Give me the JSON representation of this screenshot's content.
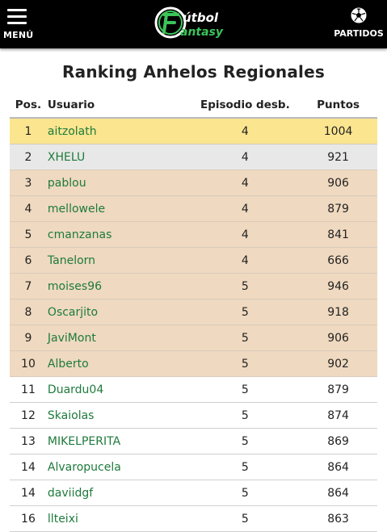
{
  "header": {
    "menu_label": "MENÚ",
    "logo_text_top": "útbol",
    "logo_text_bottom": "antasy",
    "partidos_label": "PARTIDOS"
  },
  "page": {
    "title": "Ranking Anhelos Regionales"
  },
  "colors": {
    "topbar": "#000000",
    "link_green": "#1e7a3c",
    "first_row": "#fbe58f",
    "second_row": "#e8e8e8",
    "highlight_rows": "#efd9c0"
  },
  "table": {
    "headers": {
      "pos": "Pos.",
      "user": "Usuario",
      "episode": "Episodio desb.",
      "points": "Puntos"
    },
    "rows": [
      {
        "pos": "1",
        "user": "aitzolath",
        "episode": "4",
        "points": "1004",
        "style": "gold"
      },
      {
        "pos": "2",
        "user": "XHELU",
        "episode": "4",
        "points": "921",
        "style": "silver"
      },
      {
        "pos": "3",
        "user": "pablou",
        "episode": "4",
        "points": "906",
        "style": "bronze"
      },
      {
        "pos": "4",
        "user": "mellowele",
        "episode": "4",
        "points": "879",
        "style": "bronze"
      },
      {
        "pos": "5",
        "user": "cmanzanas",
        "episode": "4",
        "points": "841",
        "style": "bronze"
      },
      {
        "pos": "6",
        "user": "Tanelorn",
        "episode": "4",
        "points": "666",
        "style": "bronze"
      },
      {
        "pos": "7",
        "user": "moises96",
        "episode": "5",
        "points": "946",
        "style": "bronze"
      },
      {
        "pos": "8",
        "user": "Oscarjito",
        "episode": "5",
        "points": "918",
        "style": "bronze"
      },
      {
        "pos": "9",
        "user": "JaviMont",
        "episode": "5",
        "points": "906",
        "style": "bronze"
      },
      {
        "pos": "10",
        "user": "Alberto",
        "episode": "5",
        "points": "902",
        "style": "bronze"
      },
      {
        "pos": "11",
        "user": "Duardu04",
        "episode": "5",
        "points": "879",
        "style": "plain"
      },
      {
        "pos": "12",
        "user": "Skaiolas",
        "episode": "5",
        "points": "874",
        "style": "plain"
      },
      {
        "pos": "13",
        "user": "MIKELPERITA",
        "episode": "5",
        "points": "869",
        "style": "plain"
      },
      {
        "pos": "14",
        "user": "Alvaropucela",
        "episode": "5",
        "points": "864",
        "style": "plain"
      },
      {
        "pos": "14",
        "user": "daviidgf",
        "episode": "5",
        "points": "864",
        "style": "plain"
      },
      {
        "pos": "16",
        "user": "llteixi",
        "episode": "5",
        "points": "863",
        "style": "plain"
      }
    ]
  }
}
